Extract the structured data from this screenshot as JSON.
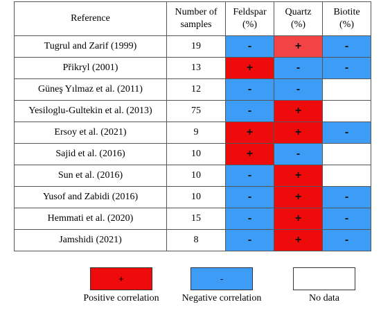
{
  "headers": {
    "reference": "Reference",
    "samples_l1": "Number of",
    "samples_l2": "samples",
    "feldspar_l1": "Feldspar",
    "feldspar_l2": "(%)",
    "quartz_l1": "Quartz",
    "quartz_l2": "(%)",
    "biotite_l1": "Biotite",
    "biotite_l2": "(%)"
  },
  "rows": [
    {
      "ref": "Tugrul and Zarif (1999)",
      "n": "19",
      "feldspar": "-",
      "quartz": "+",
      "biotite": "-"
    },
    {
      "ref": "Přikryl  (2001)",
      "n": "13",
      "feldspar": "+",
      "quartz": "-",
      "biotite": "-"
    },
    {
      "ref": "Güneş Yılmaz et al. (2011)",
      "n": "12",
      "feldspar": "-",
      "quartz": "-",
      "biotite": ""
    },
    {
      "ref": "Yesiloglu-Gultekin  et al. (2013)",
      "n": "75",
      "feldspar": "-",
      "quartz": "+",
      "biotite": ""
    },
    {
      "ref": "Ersoy et al. (2021)",
      "n": "9",
      "feldspar": "+",
      "quartz": "+",
      "biotite": "-"
    },
    {
      "ref": "Sajid et al. (2016)",
      "n": "10",
      "feldspar": "+",
      "quartz": "-",
      "biotite": ""
    },
    {
      "ref": "Sun et al. (2016)",
      "n": "10",
      "feldspar": "-",
      "quartz": "+",
      "biotite": ""
    },
    {
      "ref": "Yusof and Zabidi (2016)",
      "n": "10",
      "feldspar": "-",
      "quartz": "+",
      "biotite": "-"
    },
    {
      "ref": "Hemmati et al. (2020)",
      "n": "15",
      "feldspar": "-",
      "quartz": "+",
      "biotite": "-"
    },
    {
      "ref": "Jamshidi (2021)",
      "n": "8",
      "feldspar": "-",
      "quartz": "+",
      "biotite": "-"
    }
  ],
  "legend": {
    "positive_symbol": "+",
    "positive_label": "Positive correlation",
    "negative_symbol": "-",
    "negative_label": "Negative correlation",
    "nodata_label": "No data"
  },
  "colors": {
    "positive": "#ee0b0b",
    "negative": "#3d9cf5",
    "no_data": "#ffffff"
  }
}
